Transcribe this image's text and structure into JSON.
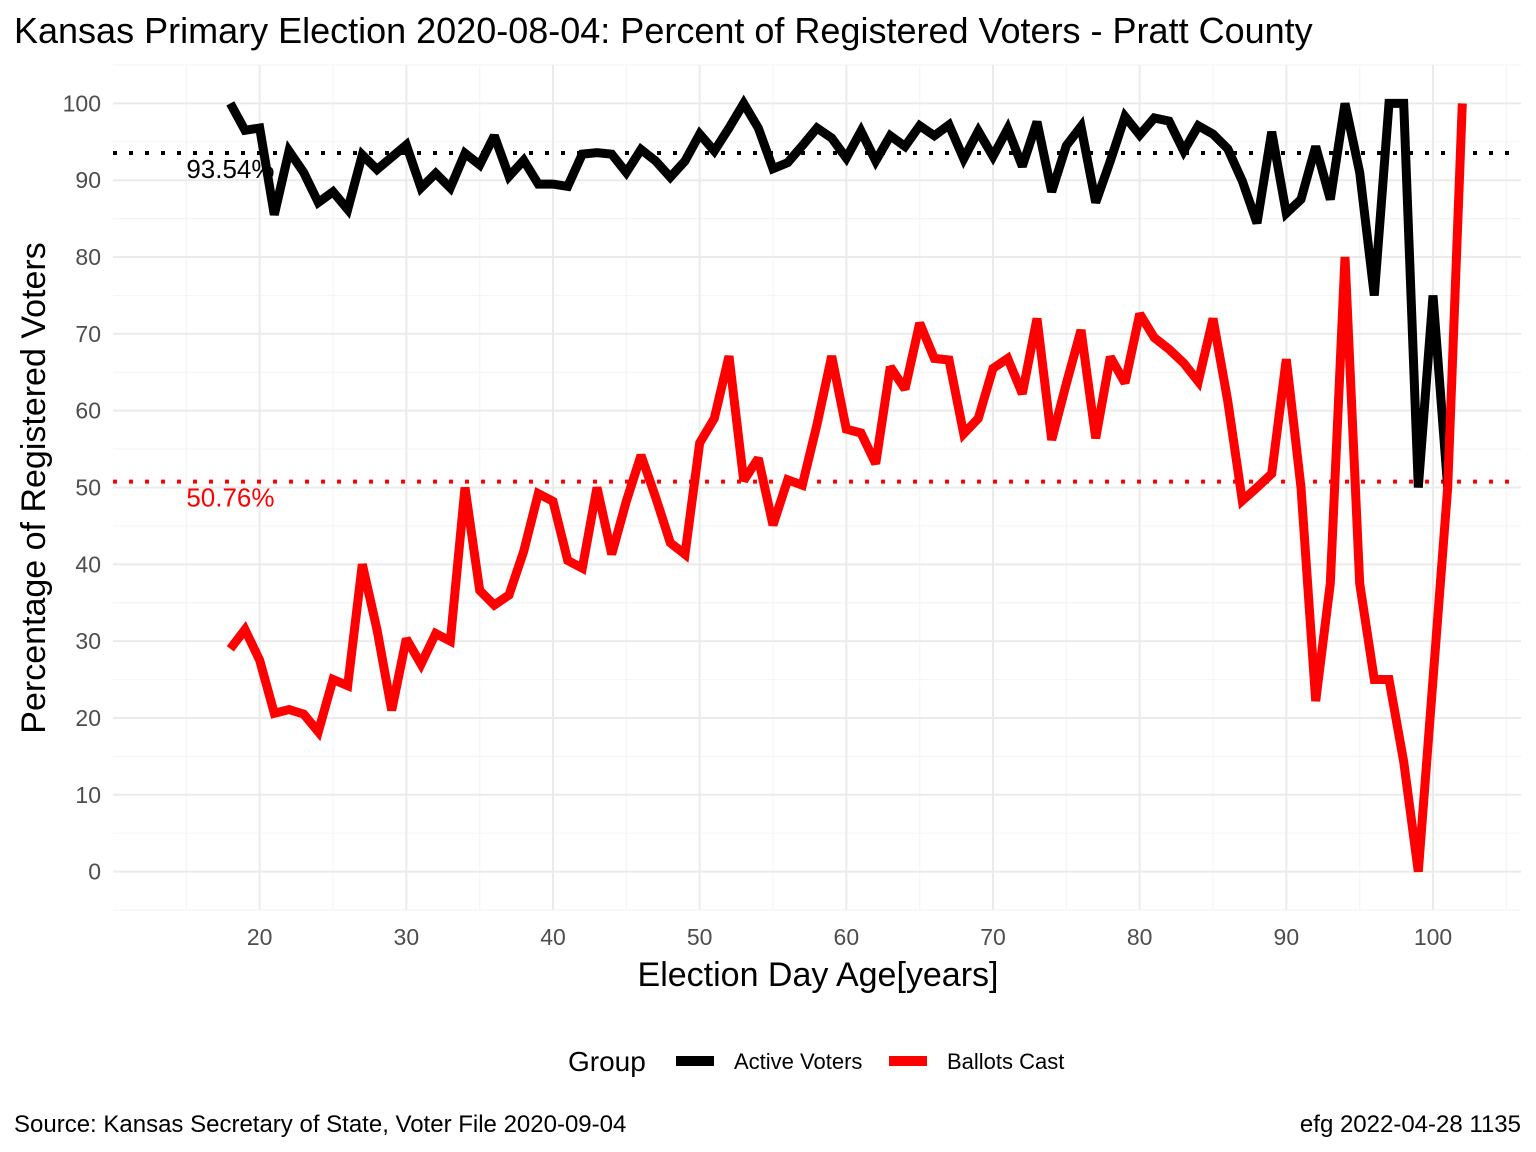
{
  "chart_data": {
    "type": "line",
    "title": "Kansas Primary Election 2020-08-04:  Percent of Registered Voters - Pratt County",
    "xlabel": "Election Day Age[years]",
    "ylabel": "Percentage of Registered Voters",
    "xlim": [
      10,
      106
    ],
    "ylim": [
      -5,
      105
    ],
    "x_ticks": [
      20,
      30,
      40,
      50,
      60,
      70,
      80,
      90,
      100
    ],
    "y_ticks": [
      0,
      10,
      20,
      30,
      40,
      50,
      60,
      70,
      80,
      90,
      100
    ],
    "grid": true,
    "legend": {
      "title": "Group",
      "position": "bottom"
    },
    "series": [
      {
        "name": "Active Voters",
        "color": "#000000",
        "x": [
          18,
          19,
          20,
          21,
          22,
          23,
          24,
          25,
          26,
          27,
          28,
          29,
          30,
          31,
          32,
          33,
          34,
          35,
          36,
          37,
          38,
          39,
          40,
          41,
          42,
          43,
          44,
          45,
          46,
          47,
          48,
          49,
          50,
          51,
          52,
          53,
          54,
          55,
          56,
          57,
          58,
          59,
          60,
          61,
          62,
          63,
          64,
          65,
          66,
          67,
          68,
          69,
          70,
          71,
          72,
          73,
          74,
          75,
          76,
          77,
          78,
          79,
          80,
          81,
          82,
          83,
          84,
          85,
          86,
          87,
          88,
          89,
          90,
          91,
          92,
          93,
          94,
          95,
          96,
          97,
          98,
          99,
          100,
          101
        ],
        "y": [
          100,
          96.5,
          96.8,
          85.5,
          93.8,
          91,
          87.1,
          88.5,
          86.2,
          93.3,
          91.4,
          93,
          94.6,
          89,
          90.9,
          89,
          93.5,
          92,
          95.8,
          90.5,
          92.6,
          89.5,
          89.5,
          89.2,
          93.4,
          93.6,
          93.4,
          91,
          94,
          92.5,
          90.4,
          92.5,
          96,
          93.8,
          96.8,
          100,
          96.8,
          91.5,
          92.3,
          94.5,
          96.8,
          95.5,
          92.9,
          96.4,
          92.5,
          95.8,
          94.4,
          97.1,
          95.8,
          97.2,
          92.8,
          96.4,
          93.1,
          96.7,
          91.8,
          97.6,
          88.5,
          94.5,
          97,
          87.1,
          92.5,
          98.3,
          95.9,
          98.1,
          97.7,
          93.8,
          97.1,
          96,
          94.1,
          89.9,
          84.4,
          96.3,
          85.7,
          87.5,
          94.4,
          87.5,
          100,
          91,
          75,
          100,
          100,
          50,
          75,
          50
        ]
      },
      {
        "name": "Ballots Cast",
        "color": "#ff0000",
        "x": [
          18,
          19,
          20,
          21,
          22,
          23,
          24,
          25,
          26,
          27,
          28,
          29,
          30,
          31,
          32,
          33,
          34,
          35,
          36,
          37,
          38,
          39,
          40,
          41,
          42,
          43,
          44,
          45,
          46,
          47,
          48,
          49,
          50,
          51,
          52,
          53,
          54,
          55,
          56,
          57,
          58,
          59,
          60,
          61,
          62,
          63,
          64,
          65,
          66,
          67,
          68,
          69,
          70,
          71,
          72,
          73,
          74,
          75,
          76,
          77,
          78,
          79,
          80,
          81,
          82,
          83,
          84,
          85,
          86,
          87,
          88,
          89,
          90,
          91,
          92,
          93,
          94,
          95,
          96,
          97,
          98,
          99,
          100,
          101,
          102
        ],
        "y": [
          29,
          31.5,
          27.5,
          20.6,
          21.1,
          20.5,
          18.2,
          25,
          24.2,
          40,
          31.5,
          21,
          30.3,
          27,
          31,
          30,
          50,
          36.6,
          34.7,
          36,
          41.7,
          49.2,
          48.2,
          40.5,
          39.5,
          50,
          41.3,
          48.2,
          54.2,
          48.7,
          42.8,
          41.3,
          55.8,
          59,
          67.1,
          50.9,
          53.8,
          45.1,
          51,
          50.3,
          58.2,
          67.1,
          57.6,
          57.1,
          53.1,
          65.7,
          62.8,
          71.4,
          66.8,
          66.6,
          57,
          59,
          65.5,
          66.8,
          62.2,
          72,
          56.2,
          63.5,
          70.5,
          56.4,
          67,
          63.6,
          72.6,
          69.5,
          68,
          66.2,
          63.8,
          72,
          61.3,
          48.3,
          50,
          51.8,
          66.7,
          50,
          22.2,
          37.5,
          80,
          37.5,
          25,
          25,
          14.3,
          0,
          25,
          50,
          100
        ]
      }
    ],
    "reference_lines": [
      {
        "series": "Active Voters",
        "value": 93.54,
        "label": "93.54%",
        "color": "#000000"
      },
      {
        "series": "Ballots Cast",
        "value": 50.76,
        "label": "50.76%",
        "color": "#ff0000"
      }
    ]
  },
  "captions": {
    "left": "Source:  Kansas Secretary of State, Voter File  2020-09-04",
    "right": "efg 2022-04-28 1135"
  }
}
